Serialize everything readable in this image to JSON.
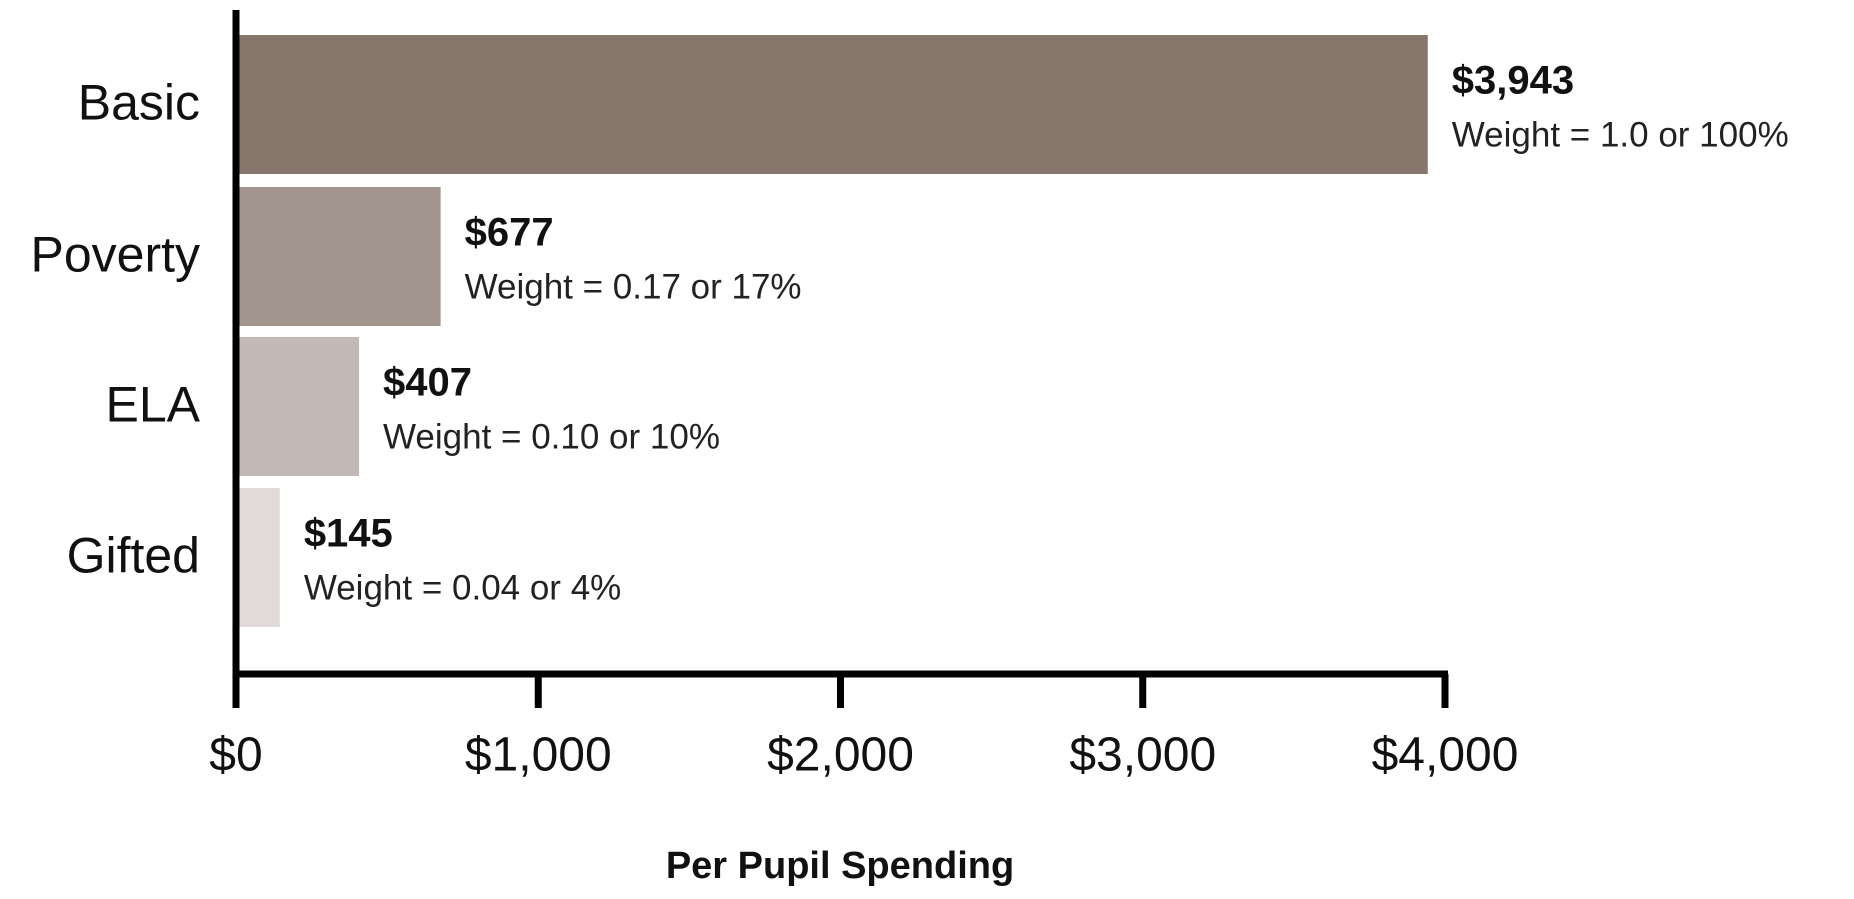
{
  "chart_data": {
    "type": "bar",
    "orientation": "horizontal",
    "categories": [
      "Basic",
      "Poverty",
      "ELA",
      "Gifted"
    ],
    "values": [
      3943,
      677,
      407,
      145
    ],
    "value_labels": [
      "$3,943",
      "$677",
      "$407",
      "$145"
    ],
    "annotations": [
      "Weight = 1.0 or 100%",
      "Weight = 0.17 or 17%",
      "Weight = 0.10 or 10%",
      "Weight = 0.04 or 4%"
    ],
    "colors": [
      "#86766b",
      "#a2958d",
      "#c2b9b4",
      "#e0dbd8"
    ],
    "xlabel": "Per Pupil Spending",
    "xlim": [
      0,
      4000
    ],
    "xticks": [
      {
        "value": 0,
        "label": "$0"
      },
      {
        "value": 1000,
        "label": "$1,000"
      },
      {
        "value": 2000,
        "label": "$2,000"
      },
      {
        "value": 3000,
        "label": "$3,000"
      },
      {
        "value": 4000,
        "label": "$4,000"
      }
    ]
  }
}
